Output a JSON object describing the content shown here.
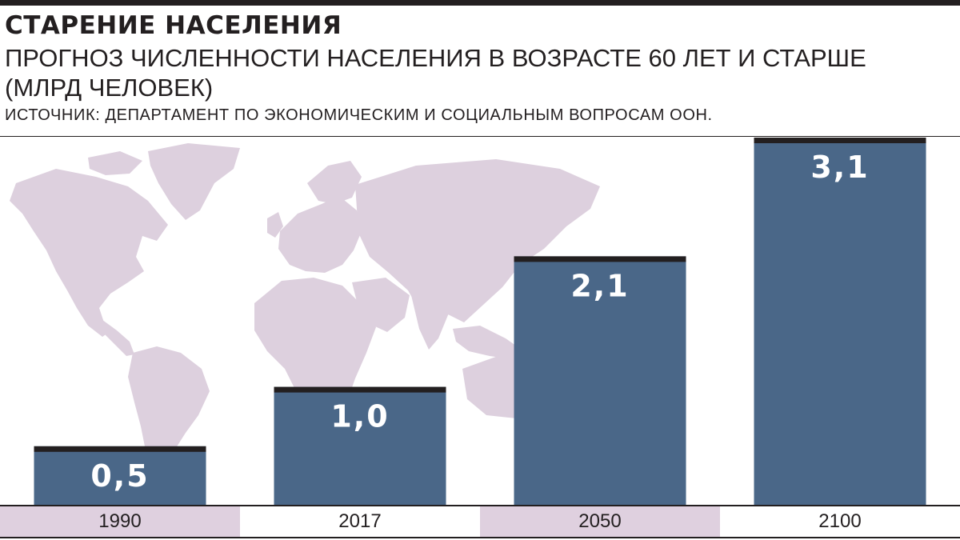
{
  "title": "СТАРЕНИЕ НАСЕЛЕНИЯ",
  "subtitle": "ПРОГНОЗ ЧИСЛЕННОСТИ НАСЕЛЕНИЯ В ВОЗРАСТЕ 60 ЛЕТ И СТАРШЕ (МЛРД ЧЕЛОВЕК)",
  "source": "ИСТОЧНИК: ДЕПАРТАМЕНТ ПО ЭКОНОМИЧЕСКИМ И СОЦИАЛЬНЫМ ВОПРОСАМ ООН.",
  "colors": {
    "bar": "#4a6788",
    "bar_cap": "#231f20",
    "map": "#ddd0de",
    "shaded_cell": "#dfd0df",
    "text": "#231f20"
  },
  "chart_data": {
    "type": "bar",
    "categories": [
      "1990",
      "2017",
      "2050",
      "2100"
    ],
    "values": [
      0.5,
      1.0,
      2.1,
      3.1
    ],
    "value_labels": [
      "0,5",
      "1,0",
      "2,1",
      "3,1"
    ],
    "title": "СТАРЕНИЕ НАСЕЛЕНИЯ",
    "subtitle": "ПРОГНОЗ ЧИСЛЕННОСТИ НАСЕЛЕНИЯ В ВОЗРАСТЕ 60 ЛЕТ И СТАРШЕ (МЛРД ЧЕЛОВЕК)",
    "ylim": [
      0,
      3.1
    ],
    "grid": false,
    "legend": "none",
    "background": "world-map"
  }
}
